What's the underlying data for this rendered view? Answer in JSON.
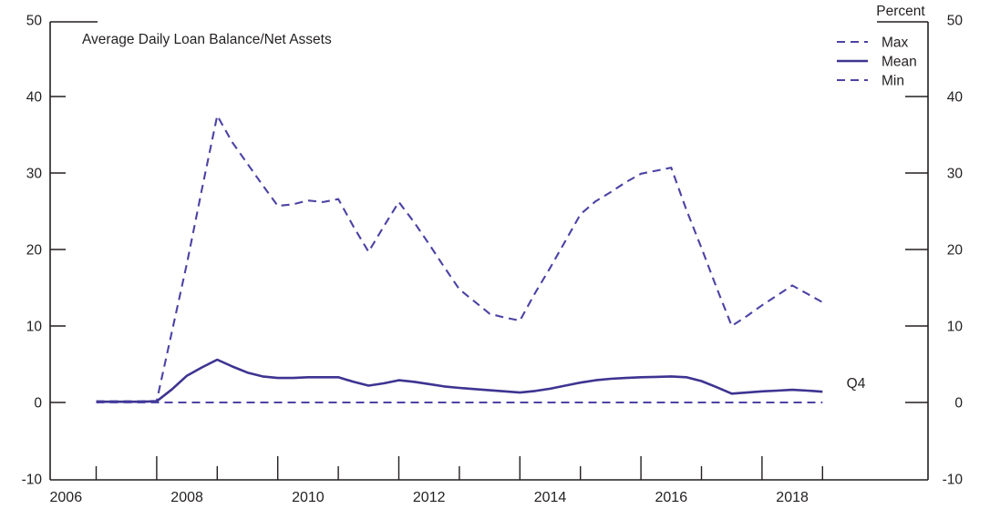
{
  "chart_data": {
    "type": "line",
    "title": "Average Daily Loan Balance/Net Assets",
    "right_axis_title": "Percent",
    "end_annotation": "Q4",
    "xlabel": "",
    "ylabel": "Percent",
    "ylim": [
      -10,
      50
    ],
    "y_tick_values": [
      -10,
      0,
      10,
      20,
      30,
      40,
      50
    ],
    "x_tick_years": [
      2007,
      2008,
      2009,
      2010,
      2011,
      2012,
      2013,
      2014,
      2015,
      2016,
      2017,
      2018,
      2019
    ],
    "x_label_years": [
      2006,
      2008,
      2010,
      2012,
      2014,
      2016,
      2018
    ],
    "x_domain_years": [
      2006.24,
      2020.7
    ],
    "grid": "off",
    "legend_position": "top-right-inside",
    "frequency": "quarterly",
    "quarters": [
      "2006Q4",
      "2007Q1",
      "2007Q2",
      "2007Q3",
      "2007Q4",
      "2008Q1",
      "2008Q2",
      "2008Q3",
      "2008Q4",
      "2009Q1",
      "2009Q2",
      "2009Q3",
      "2009Q4",
      "2010Q1",
      "2010Q2",
      "2010Q3",
      "2010Q4",
      "2011Q1",
      "2011Q2",
      "2011Q3",
      "2011Q4",
      "2012Q1",
      "2012Q2",
      "2012Q3",
      "2012Q4",
      "2013Q1",
      "2013Q2",
      "2013Q3",
      "2013Q4",
      "2014Q1",
      "2014Q2",
      "2014Q3",
      "2014Q4",
      "2015Q1",
      "2015Q2",
      "2015Q3",
      "2015Q4",
      "2016Q1",
      "2016Q2",
      "2016Q3",
      "2016Q4",
      "2017Q1",
      "2017Q2",
      "2017Q3",
      "2017Q4",
      "2018Q1",
      "2018Q2",
      "2018Q3",
      "2018Q4"
    ],
    "series": [
      {
        "name": "Max",
        "style": "dashed",
        "color": "#4c43a4",
        "values": [
          0.15,
          0.15,
          0.15,
          0.15,
          0.2,
          9.2,
          18.2,
          28.0,
          37.5,
          34.0,
          31.2,
          28.4,
          25.7,
          25.9,
          26.4,
          26.2,
          26.6,
          23.0,
          19.7,
          23.0,
          26.2,
          23.6,
          20.7,
          17.7,
          14.8,
          13.2,
          11.6,
          11.1,
          10.7,
          14.3,
          17.6,
          21.1,
          24.6,
          26.3,
          27.5,
          28.8,
          29.9,
          30.3,
          30.7,
          25.2,
          20.2,
          15.0,
          10.0,
          11.3,
          12.7,
          14.0,
          15.3,
          14.2,
          13.1
        ]
      },
      {
        "name": "Mean",
        "style": "solid",
        "color": "#3d3491",
        "values": [
          0.1,
          0.1,
          0.1,
          0.1,
          0.15,
          1.7,
          3.5,
          4.6,
          5.6,
          4.7,
          3.9,
          3.4,
          3.2,
          3.2,
          3.3,
          3.3,
          3.3,
          2.7,
          2.2,
          2.5,
          2.9,
          2.7,
          2.4,
          2.1,
          1.9,
          1.75,
          1.6,
          1.45,
          1.3,
          1.5,
          1.8,
          2.2,
          2.6,
          2.9,
          3.1,
          3.2,
          3.3,
          3.35,
          3.4,
          3.3,
          2.8,
          2.0,
          1.15,
          1.3,
          1.45,
          1.55,
          1.65,
          1.55,
          1.4
        ]
      },
      {
        "name": "Min",
        "style": "dashed",
        "color": "#4c43a4",
        "values": [
          0,
          0,
          0,
          0,
          0,
          0,
          0,
          0,
          0,
          0,
          0,
          0,
          0,
          0,
          0,
          0,
          0,
          0,
          0,
          0,
          0,
          0,
          0,
          0,
          0,
          0,
          0,
          0,
          0,
          0,
          0,
          0,
          0,
          0,
          0,
          0,
          0,
          0,
          0,
          0,
          0,
          0,
          0,
          0,
          0,
          0,
          0,
          0,
          0
        ]
      }
    ],
    "colors": {
      "line_solid": "#3d3491",
      "line_dashed": "#4c43a4",
      "axis": "#231f20",
      "text": "#231f20",
      "background": "#ffffff"
    }
  }
}
